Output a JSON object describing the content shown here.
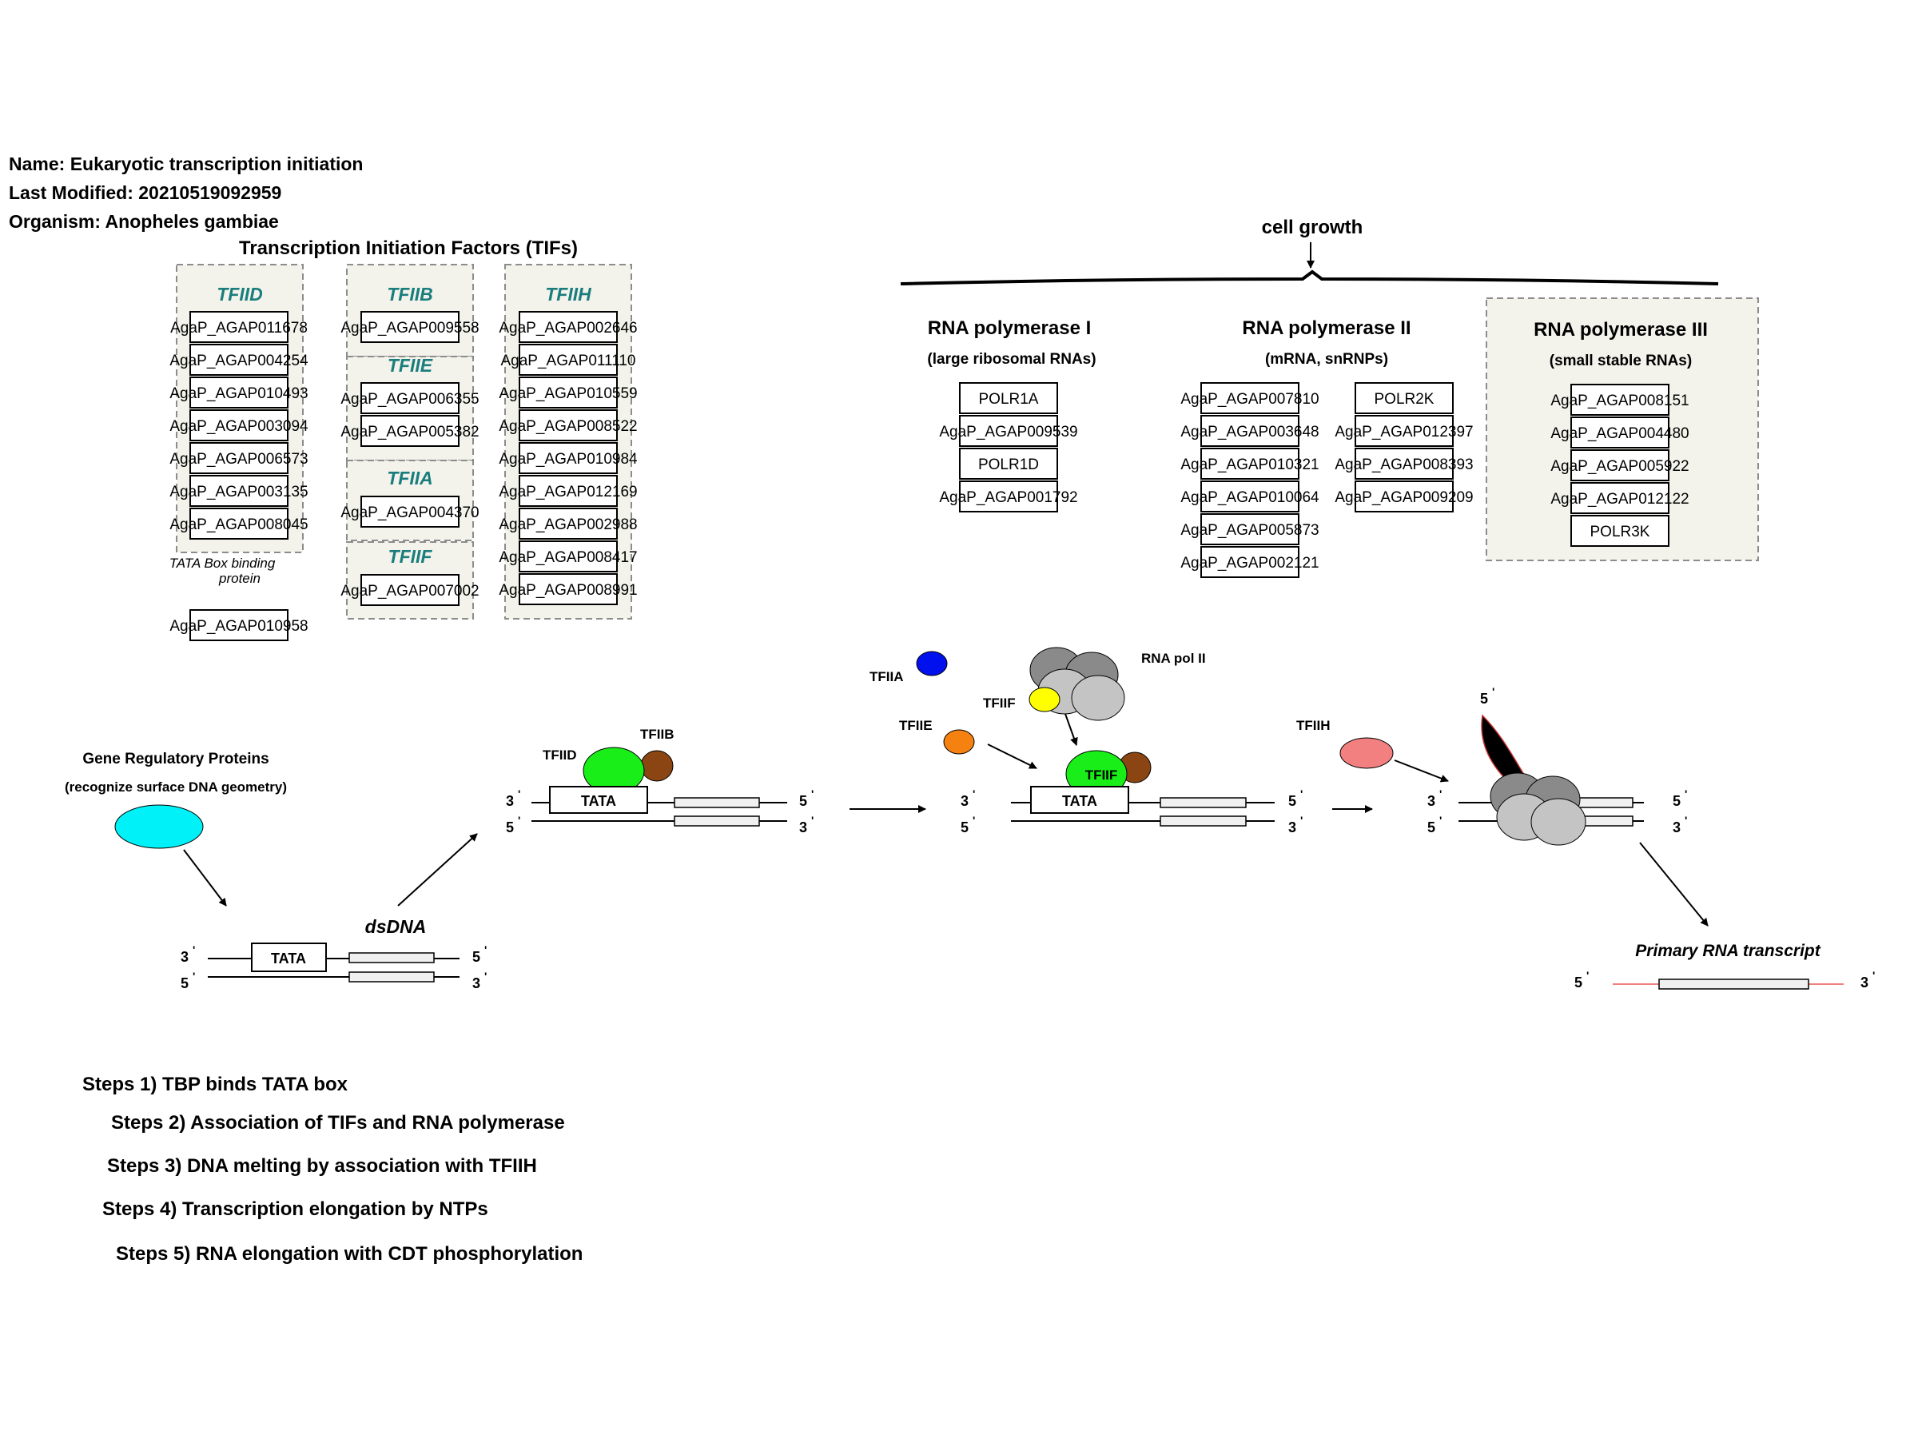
{
  "header": {
    "name": "Name: Eukaryotic transcription initiation",
    "modified": "Last Modified: 20210519092959",
    "organism": "Organism: Anopheles gambiae"
  },
  "tifs": {
    "title": "Transcription Initiation Factors (TIFs)",
    "tfiid": {
      "label": "TFIID",
      "genes": [
        "AgaP_AGAP011678",
        "AgaP_AGAP004254",
        "AgaP_AGAP010493",
        "AgaP_AGAP003094",
        "AgaP_AGAP006573",
        "AgaP_AGAP003135",
        "AgaP_AGAP008045"
      ],
      "tbp_note_line1": "TATA Box binding",
      "tbp_note_line2": "protein",
      "tbp_gene": "AgaP_AGAP010958"
    },
    "tfiib": {
      "label": "TFIIB",
      "genes": [
        "AgaP_AGAP009558"
      ]
    },
    "tfiie": {
      "label": "TFIIE",
      "genes": [
        "AgaP_AGAP006355",
        "AgaP_AGAP005382"
      ]
    },
    "tfiia": {
      "label": "TFIIA",
      "genes": [
        "AgaP_AGAP004370"
      ]
    },
    "tfiif": {
      "label": "TFIIF",
      "genes": [
        "AgaP_AGAP007002"
      ]
    },
    "tfiih": {
      "label": "TFIIH",
      "genes": [
        "AgaP_AGAP002646",
        "AgaP_AGAP011110",
        "AgaP_AGAP010559",
        "AgaP_AGAP008522",
        "AgaP_AGAP010984",
        "AgaP_AGAP012169",
        "AgaP_AGAP002988",
        "AgaP_AGAP008417",
        "AgaP_AGAP008991"
      ]
    }
  },
  "polymerases": {
    "cell_growth": "cell growth",
    "pol1": {
      "title": "RNA polymerase I",
      "subtitle": "(large ribosomal RNAs)",
      "genes": [
        "POLR1A",
        "AgaP_AGAP009539",
        "POLR1D",
        "AgaP_AGAP001792"
      ]
    },
    "pol2": {
      "title": "RNA polymerase II",
      "subtitle": "(mRNA, snRNPs)",
      "genes_a": [
        "AgaP_AGAP007810",
        "AgaP_AGAP003648",
        "AgaP_AGAP010321",
        "AgaP_AGAP010064",
        "AgaP_AGAP005873",
        "AgaP_AGAP002121"
      ],
      "genes_b": [
        "POLR2K",
        "AgaP_AGAP012397",
        "AgaP_AGAP008393",
        "AgaP_AGAP009209"
      ]
    },
    "pol3": {
      "title": "RNA polymerase III",
      "subtitle": "(small stable RNAs)",
      "genes": [
        "AgaP_AGAP008151",
        "AgaP_AGAP004480",
        "AgaP_AGAP005922",
        "AgaP_AGAP012122",
        "POLR3K"
      ]
    }
  },
  "mechanism": {
    "gene_reg_line1": "Gene Regulatory Proteins",
    "gene_reg_line2": "(recognize surface DNA geometry)",
    "dsdna": "dsDNA",
    "tata": "TATA",
    "tfiid": "TFIID",
    "tfiib": "TFIIB",
    "tfiia": "TFIIA",
    "tfiie": "TFIIE",
    "tfiif": "TFIIF",
    "tfiih": "TFIIH",
    "rna_pol_ii": "RNA pol II",
    "primary_transcript": "Primary RNA transcript",
    "end3": "3",
    "end5": "5",
    "prime": "'"
  },
  "steps": [
    "Steps 1) TBP binds TATA box",
    "Steps 2) Association of TIFs and RNA polymerase",
    "Steps 3) DNA melting by association with TFIIH",
    "Steps 4) Transcription elongation by NTPs",
    "Steps 5) RNA elongation with CDT phosphorylation"
  ],
  "colors": {
    "panel_fill": "#f3f3ec",
    "panel_border": "#8c8c8c",
    "tf_label": "#1a7d7d",
    "gene_reg": "#00f2f8",
    "tfiid_green": "#19ee19",
    "tfiib_brown": "#8b4513",
    "tfiia_blue": "#0011ee",
    "tfiie_orange": "#f58210",
    "tfiih_pink": "#f28080",
    "tfiif_yellow": "#ffff00",
    "pol_dark": "#8a8a8a",
    "pol_light": "#c4c4c4",
    "rna_line": "#f08080"
  }
}
